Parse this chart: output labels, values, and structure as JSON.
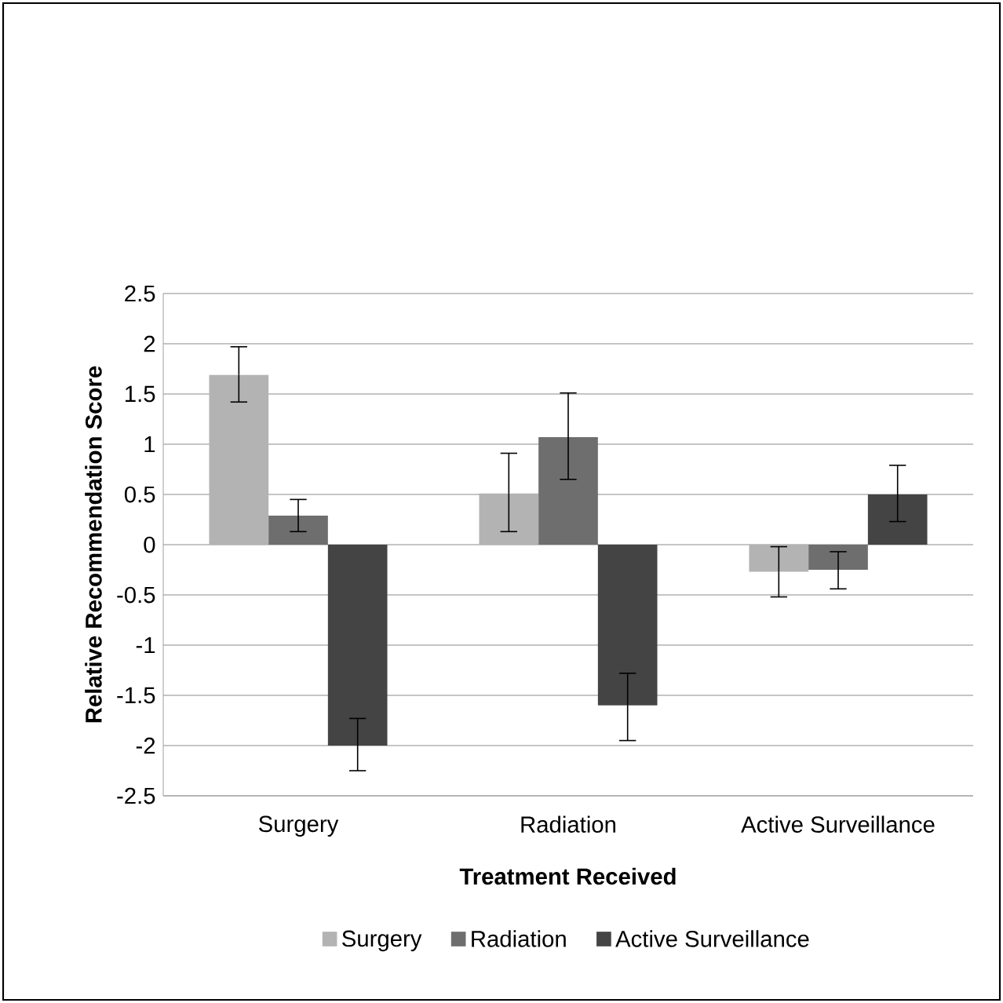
{
  "chart_data": {
    "type": "bar",
    "xlabel": "Treatment Received",
    "ylabel": "Relative Recommendation Score",
    "categories": [
      "Surgery",
      "Radiation",
      "Active Surveillance"
    ],
    "series": [
      {
        "name": "Surgery",
        "color": "#b3b3b3",
        "values": [
          1.69,
          0.51,
          -0.27
        ],
        "errors": [
          [
            1.42,
            1.97
          ],
          [
            0.13,
            0.91
          ],
          [
            -0.52,
            -0.02
          ]
        ]
      },
      {
        "name": "Radiation",
        "color": "#6e6e6e",
        "values": [
          0.29,
          1.07,
          -0.25
        ],
        "errors": [
          [
            0.13,
            0.45
          ],
          [
            0.65,
            1.51
          ],
          [
            -0.44,
            -0.07
          ]
        ]
      },
      {
        "name": "Active Surveillance",
        "color": "#444444",
        "values": [
          -2.0,
          -1.6,
          0.5
        ],
        "errors": [
          [
            -2.25,
            -1.73
          ],
          [
            -1.95,
            -1.28
          ],
          [
            0.23,
            0.79
          ]
        ]
      }
    ],
    "ylim": [
      -2.5,
      2.5
    ],
    "yticks": [
      -2.5,
      -2,
      -1.5,
      -1,
      -0.5,
      0,
      0.5,
      1,
      1.5,
      2,
      2.5
    ],
    "grid": "y",
    "legend": "bottom"
  }
}
